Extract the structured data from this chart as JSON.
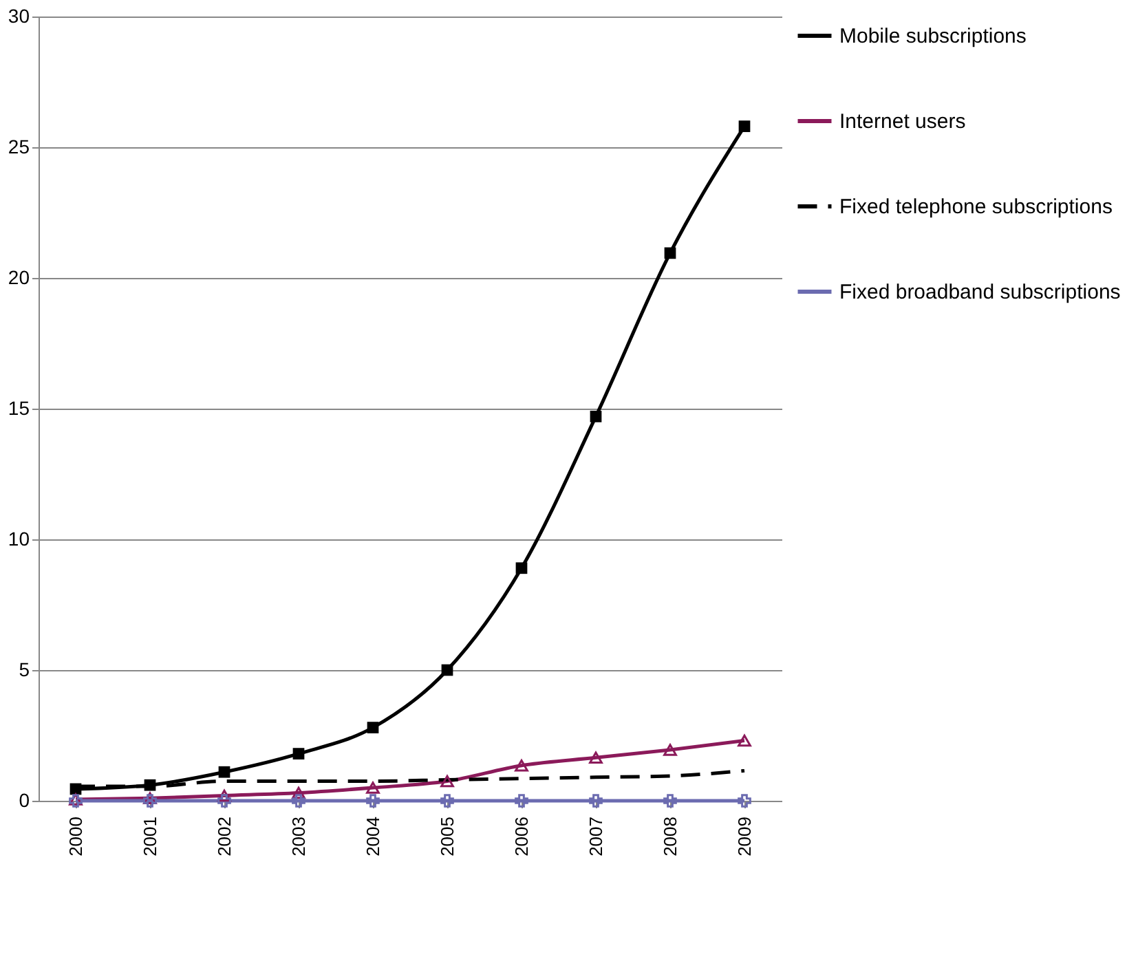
{
  "chart_data": {
    "type": "line",
    "categories": [
      "2000",
      "2001",
      "2002",
      "2003",
      "2004",
      "2005",
      "2006",
      "2007",
      "2008",
      "2009"
    ],
    "series": [
      {
        "name": "Mobile subscriptions",
        "color": "#000000",
        "marker": "square",
        "line_style": "solid",
        "values": [
          0.45,
          0.6,
          1.1,
          1.8,
          2.8,
          5.0,
          8.9,
          14.7,
          20.95,
          25.8
        ]
      },
      {
        "name": "Internet users",
        "color": "#8b1a5a",
        "marker": "triangle",
        "line_style": "solid",
        "values": [
          0.05,
          0.1,
          0.2,
          0.3,
          0.5,
          0.75,
          1.35,
          1.65,
          1.95,
          2.3
        ]
      },
      {
        "name": "Fixed telephone subscriptions",
        "color": "#000000",
        "marker": "none",
        "line_style": "dashed",
        "values": [
          0.55,
          0.55,
          0.75,
          0.75,
          0.75,
          0.8,
          0.85,
          0.9,
          0.95,
          1.15
        ]
      },
      {
        "name": "Fixed broadband subscriptions",
        "color": "#6b6bb0",
        "marker": "cross",
        "line_style": "solid",
        "values": [
          0,
          0,
          0,
          0,
          0,
          0,
          0,
          0,
          0,
          0
        ]
      }
    ],
    "ylim": [
      0,
      30
    ],
    "yticks": [
      0,
      5,
      10,
      15,
      20,
      25,
      30
    ],
    "grid": "y",
    "legend": "right"
  }
}
